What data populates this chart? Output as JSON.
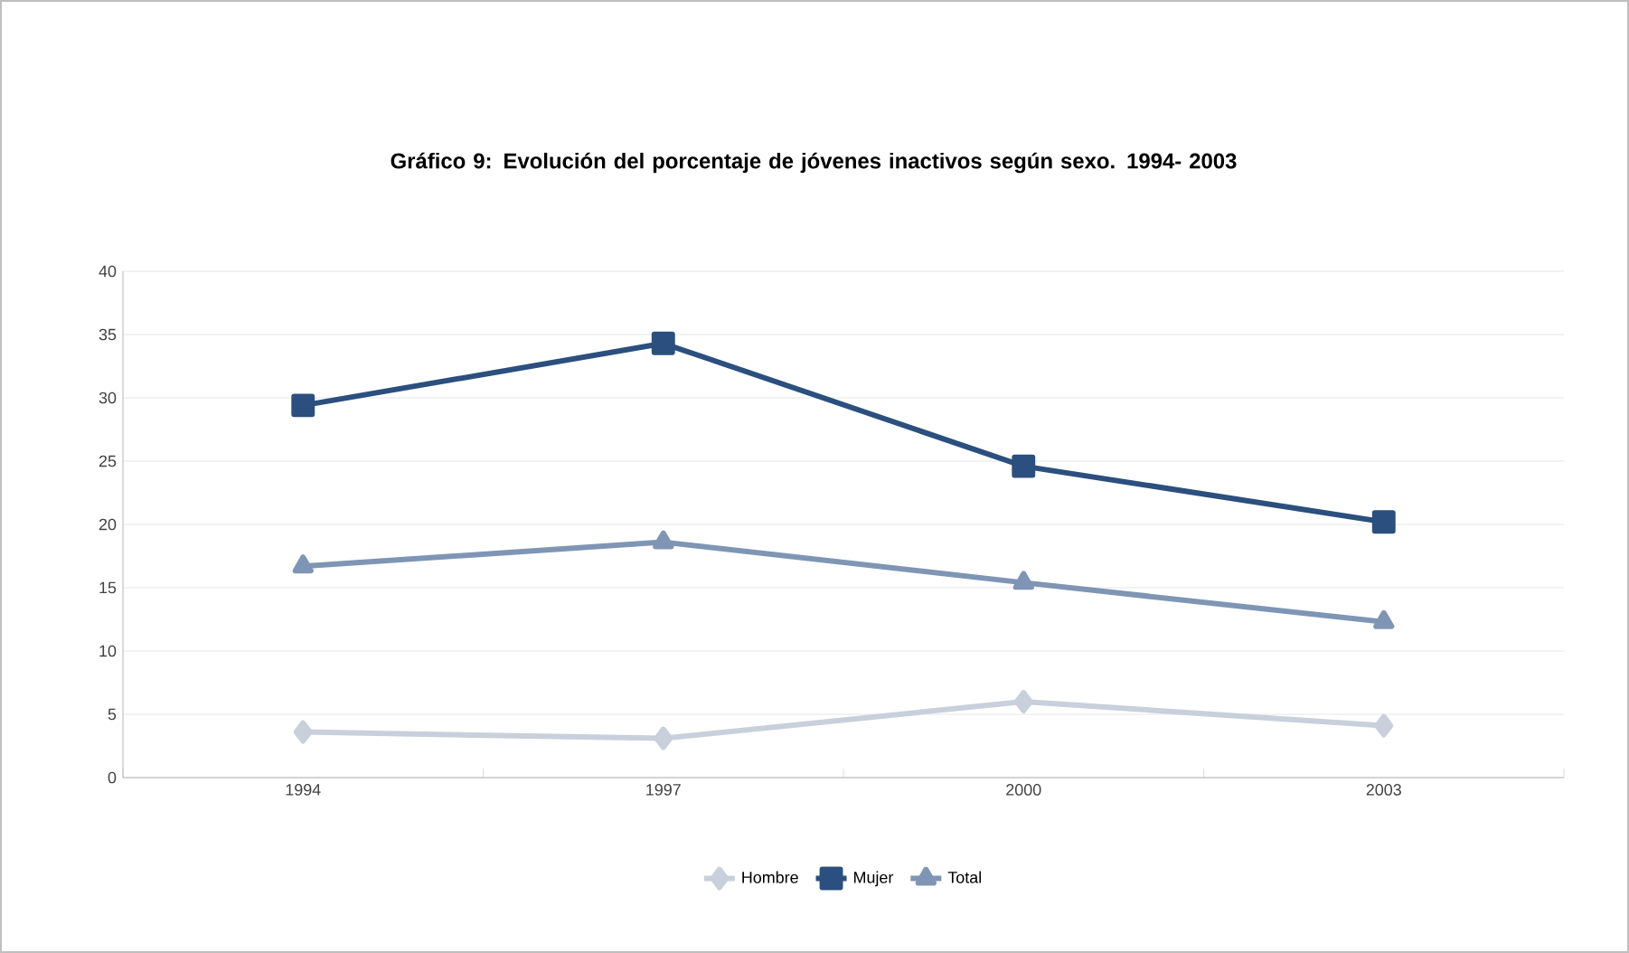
{
  "chart_data": {
    "type": "line",
    "title": "Gráfico 9: Evolución del porcentaje de jóvenes inactivos según sexo. 1994- 2003",
    "categories": [
      "1994",
      "1997",
      "2000",
      "2003"
    ],
    "series": [
      {
        "name": "Hombre",
        "color": "#c8d0dc",
        "marker": "diamond",
        "values": [
          3.6,
          3.1,
          6.0,
          4.1
        ]
      },
      {
        "name": "Mujer",
        "color": "#2b4f7e",
        "marker": "square",
        "values": [
          29.4,
          34.3,
          24.6,
          20.2
        ]
      },
      {
        "name": "Total",
        "color": "#7f95b5",
        "marker": "triangle",
        "values": [
          16.7,
          18.6,
          15.4,
          12.3
        ]
      }
    ],
    "ylim": [
      0,
      40
    ],
    "yticks": [
      0,
      5,
      10,
      15,
      20,
      25,
      30,
      35,
      40
    ],
    "grid": "y",
    "legend": "bottom"
  }
}
